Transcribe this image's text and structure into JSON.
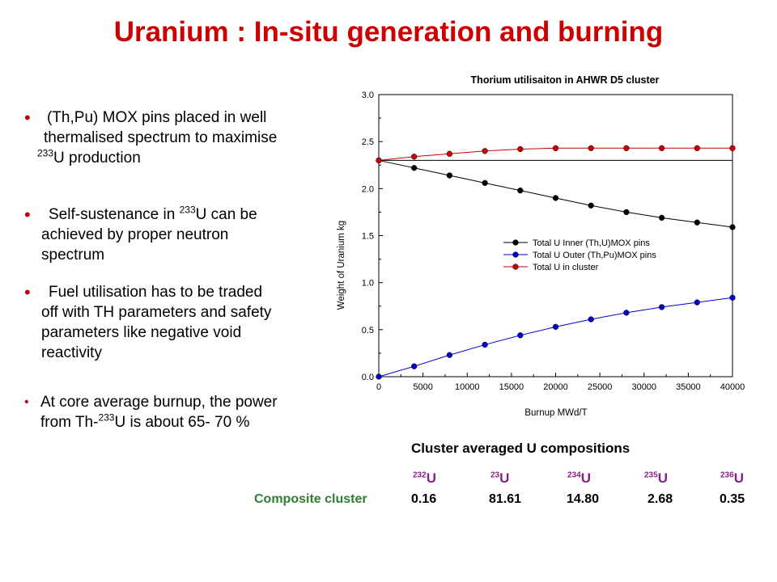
{
  "title": "Uranium : In-situ generation  and  burning",
  "bullets": [
    {
      "pre": "(Th,Pu) MOX pins placed in well",
      "line2": "thermalised spectrum to maximise",
      "sup": "233",
      "post": "U production"
    },
    {
      "pre": "Self-sustenance in ",
      "sup": "233",
      "post": "U can be",
      "line2": "achieved by proper neutron",
      "line3": "spectrum"
    },
    {
      "line1": "Fuel utilisation has to be traded",
      "line2": "off with  TH parameters and safety",
      "line3": "parameters like negative void",
      "line4": "reactivity"
    },
    {
      "line1": "At core average burnup, the power",
      "pre": "from Th-",
      "sup": "233",
      "post": "U is about 65- 70 %"
    }
  ],
  "chart_data": {
    "type": "line",
    "title": "Thorium utilisaiton in AHWR D5 cluster",
    "xlabel": "Burnup    MWd/T",
    "ylabel": "Weight of Uranium    kg",
    "xlim": [
      0,
      40000
    ],
    "ylim": [
      0,
      3.0
    ],
    "xticks": [
      "0",
      "5000",
      "10000",
      "15000",
      "20000",
      "25000",
      "30000",
      "35000",
      "40000"
    ],
    "yticks": [
      "0.0",
      "0.5",
      "1.0",
      "1.5",
      "2.0",
      "2.5",
      "3.0"
    ],
    "legend_position": "center-right",
    "x": [
      0,
      4000,
      8000,
      12000,
      16000,
      20000,
      24000,
      28000,
      32000,
      36000,
      40000
    ],
    "series": [
      {
        "name": "Total U Inner (Th,U)MOX pins",
        "color": "#000000",
        "values": [
          2.3,
          2.22,
          2.14,
          2.06,
          1.98,
          1.9,
          1.82,
          1.75,
          1.69,
          1.64,
          1.59
        ]
      },
      {
        "name": "Total U Outer (Th,Pu)MOX pins",
        "color": "#0000cc",
        "values": [
          0.0,
          0.11,
          0.23,
          0.34,
          0.44,
          0.53,
          0.61,
          0.68,
          0.74,
          0.79,
          0.84
        ]
      },
      {
        "name": "Total U in cluster",
        "color": "#cc0000",
        "values": [
          2.3,
          2.34,
          2.37,
          2.4,
          2.42,
          2.43,
          2.43,
          2.43,
          2.43,
          2.43,
          2.43
        ]
      }
    ],
    "reference_line": 2.3
  },
  "composition": {
    "title": "Cluster averaged U compositions",
    "isotopes": [
      {
        "sup": "232",
        "sym": "U"
      },
      {
        "sup": "23",
        "sym": "U"
      },
      {
        "sup": "234",
        "sym": "U"
      },
      {
        "sup": "235",
        "sym": "U"
      },
      {
        "sup": "236",
        "sym": "U"
      }
    ],
    "row_label": "Composite cluster",
    "values": [
      "0.16",
      "81.61",
      "14.80",
      "2.68",
      "0.35"
    ]
  }
}
